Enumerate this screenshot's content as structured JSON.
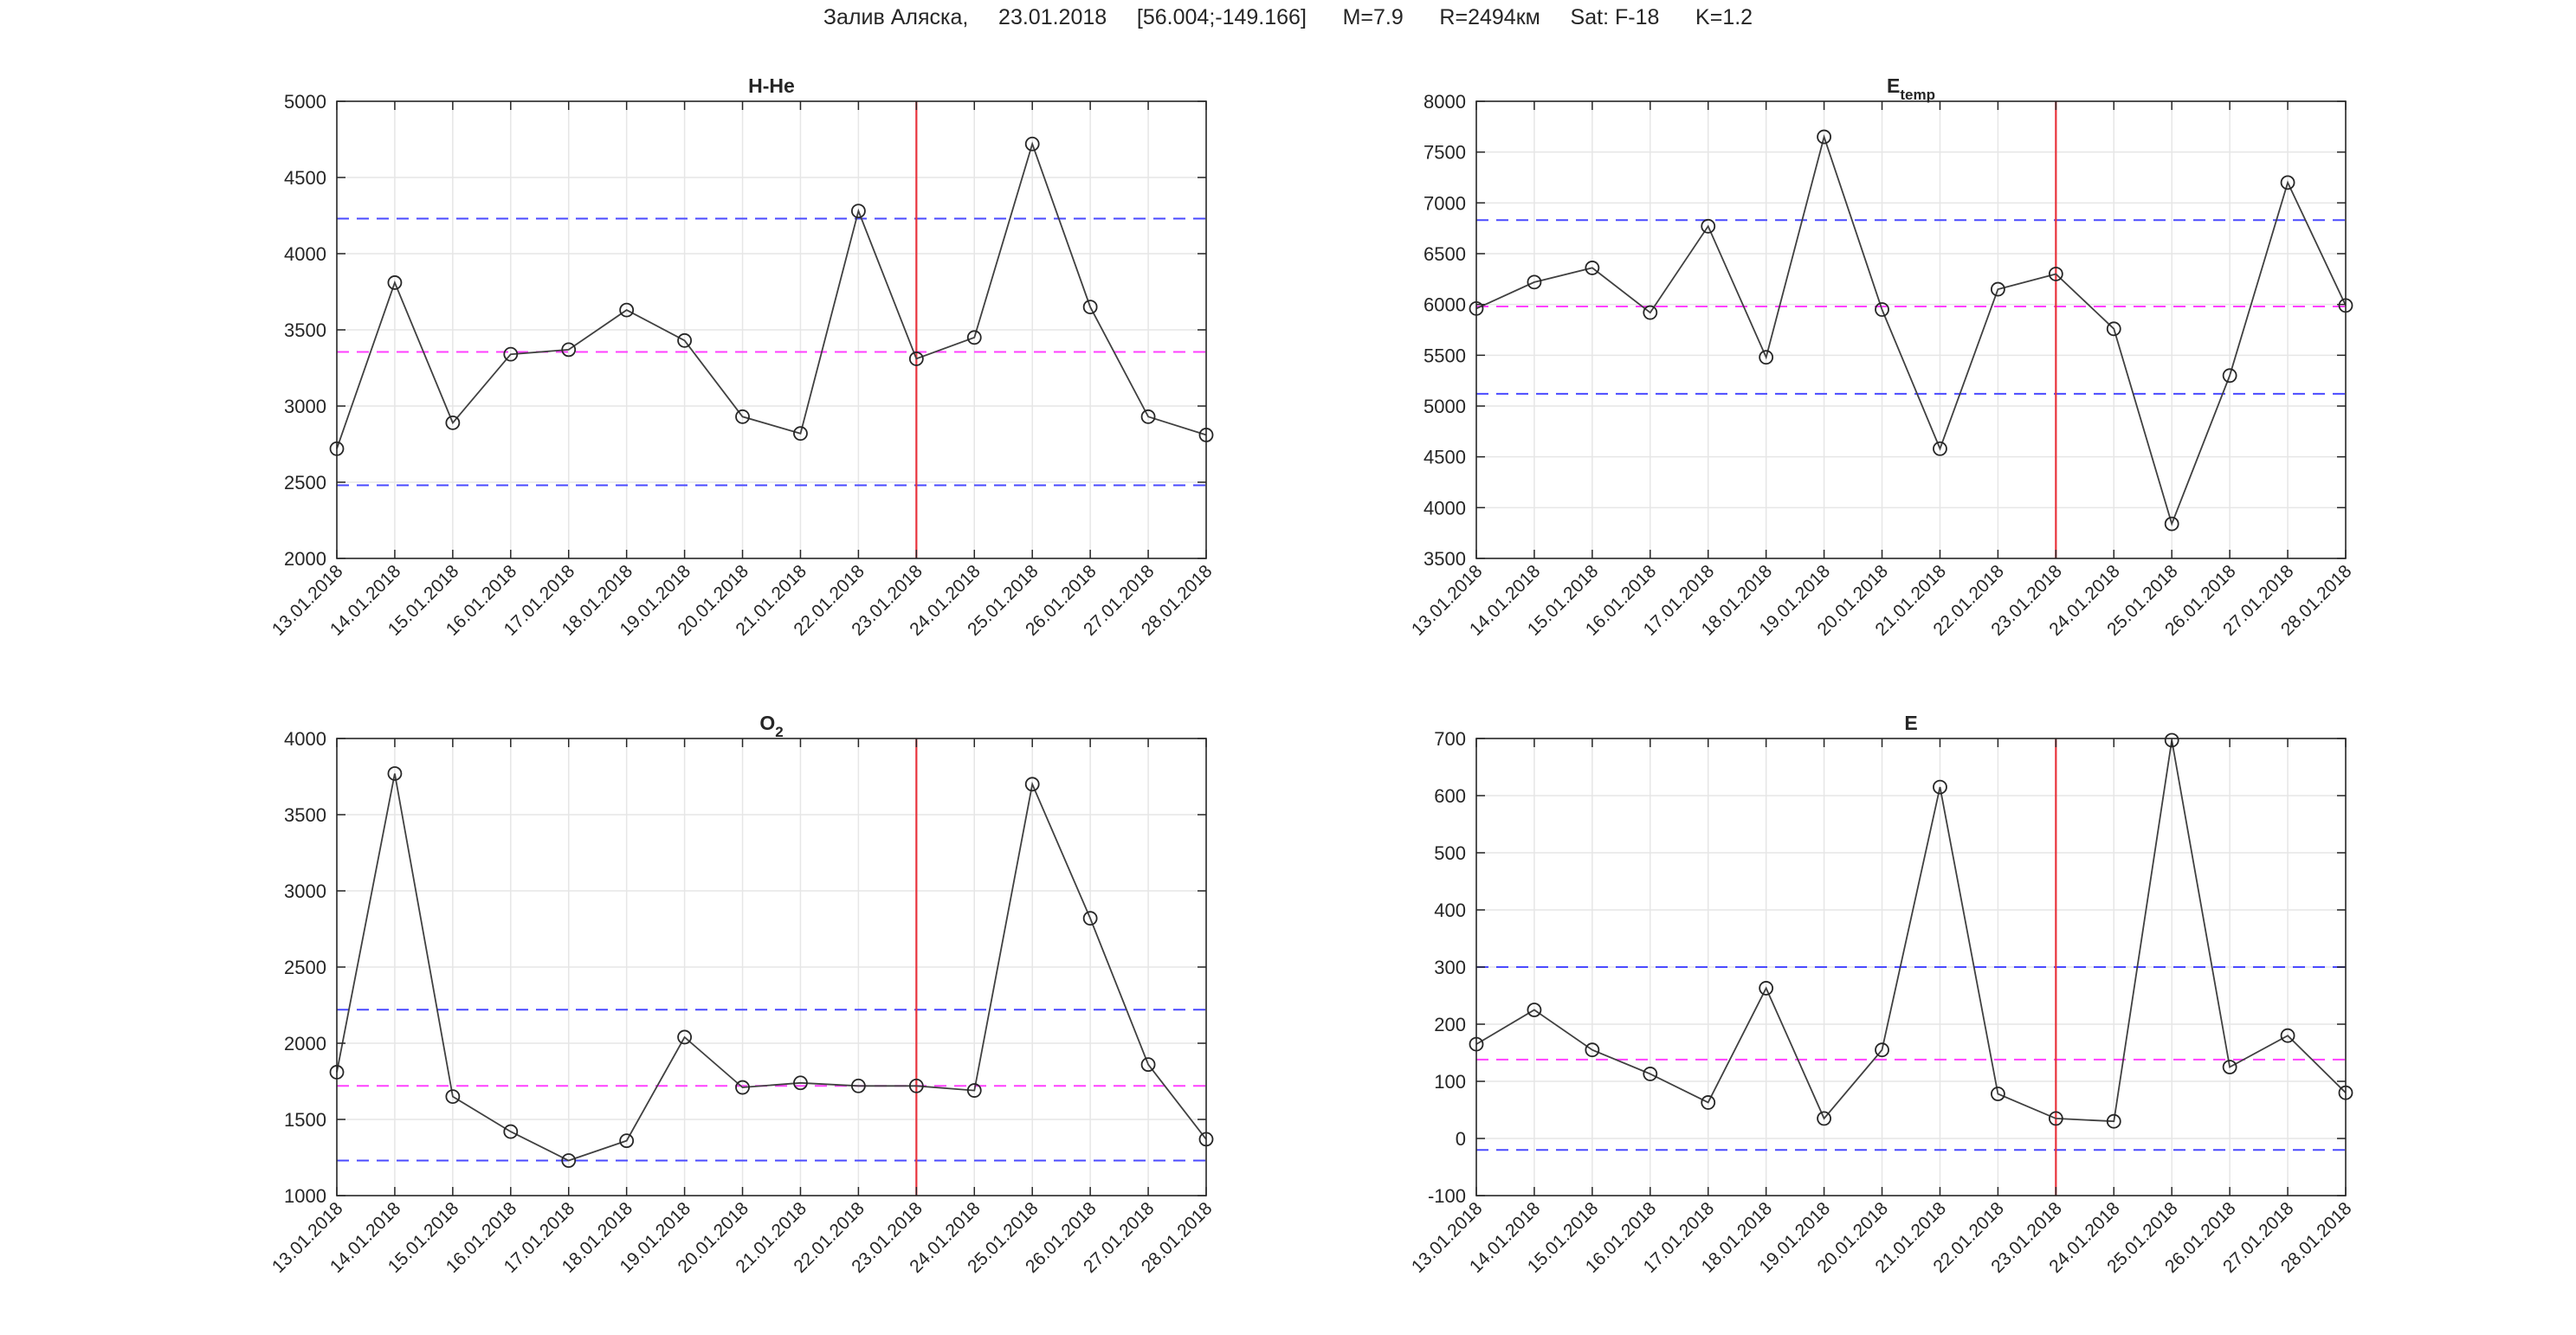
{
  "figure_title": "Залив Аляска,     23.01.2018     [56.004;-149.166]      M=7.9      R=2494км     Sat: F-18      K=1.2",
  "colors": {
    "series": "#404040",
    "mean": "#ff40ff",
    "bound": "#4a4aff",
    "event": "#e8343c",
    "grid": "#e6e6e6"
  },
  "chart_data": [
    {
      "type": "line",
      "title": "H-He",
      "title_sub": "",
      "x": [
        "13.01.2018",
        "14.01.2018",
        "15.01.2018",
        "16.01.2018",
        "17.01.2018",
        "18.01.2018",
        "19.01.2018",
        "20.01.2018",
        "21.01.2018",
        "22.01.2018",
        "23.01.2018",
        "24.01.2018",
        "25.01.2018",
        "26.01.2018",
        "27.01.2018",
        "28.01.2018"
      ],
      "values": [
        2720,
        3810,
        2890,
        3340,
        3370,
        3630,
        3430,
        2930,
        2820,
        4280,
        3310,
        3450,
        4720,
        3650,
        2930,
        2810
      ],
      "ylim": [
        2000,
        5000
      ],
      "yticks": [
        2000,
        2500,
        3000,
        3500,
        4000,
        4500,
        5000
      ],
      "mean": 3355,
      "upper": 4230,
      "lower": 2480,
      "event_x": "23.01.2018",
      "marker": "circle",
      "grid": true
    },
    {
      "type": "line",
      "title": "E",
      "title_sub": "temp",
      "x": [
        "13.01.2018",
        "14.01.2018",
        "15.01.2018",
        "16.01.2018",
        "17.01.2018",
        "18.01.2018",
        "19.01.2018",
        "20.01.2018",
        "21.01.2018",
        "22.01.2018",
        "23.01.2018",
        "24.01.2018",
        "25.01.2018",
        "26.01.2018",
        "27.01.2018",
        "28.01.2018"
      ],
      "values": [
        5960,
        6220,
        6360,
        5920,
        6770,
        5480,
        7650,
        5950,
        4580,
        6150,
        6300,
        5760,
        3840,
        5300,
        7200,
        5990
      ],
      "ylim": [
        3500,
        8000
      ],
      "yticks": [
        3500,
        4000,
        4500,
        5000,
        5500,
        6000,
        6500,
        7000,
        7500,
        8000
      ],
      "mean": 5980,
      "upper": 6830,
      "lower": 5120,
      "event_x": "23.01.2018",
      "marker": "circle",
      "grid": true
    },
    {
      "type": "line",
      "title": "O",
      "title_sub": "2",
      "x": [
        "13.01.2018",
        "14.01.2018",
        "15.01.2018",
        "16.01.2018",
        "17.01.2018",
        "18.01.2018",
        "19.01.2018",
        "20.01.2018",
        "21.01.2018",
        "22.01.2018",
        "23.01.2018",
        "24.01.2018",
        "25.01.2018",
        "26.01.2018",
        "27.01.2018",
        "28.01.2018"
      ],
      "values": [
        1810,
        3770,
        1650,
        1420,
        1230,
        1360,
        2040,
        1710,
        1740,
        1720,
        1720,
        1690,
        3700,
        2820,
        1860,
        1370
      ],
      "ylim": [
        1000,
        4000
      ],
      "yticks": [
        1000,
        1500,
        2000,
        2500,
        3000,
        3500,
        4000
      ],
      "mean": 1720,
      "upper": 2220,
      "lower": 1230,
      "event_x": "23.01.2018",
      "marker": "circle",
      "grid": true
    },
    {
      "type": "line",
      "title": "E",
      "title_sub": "",
      "x": [
        "13.01.2018",
        "14.01.2018",
        "15.01.2018",
        "16.01.2018",
        "17.01.2018",
        "18.01.2018",
        "19.01.2018",
        "20.01.2018",
        "21.01.2018",
        "22.01.2018",
        "23.01.2018",
        "24.01.2018",
        "25.01.2018",
        "26.01.2018",
        "27.01.2018",
        "28.01.2018"
      ],
      "values": [
        165,
        225,
        155,
        113,
        63,
        263,
        35,
        155,
        615,
        78,
        35,
        30,
        697,
        125,
        180,
        80
      ],
      "ylim": [
        -100,
        700
      ],
      "yticks": [
        -100,
        0,
        100,
        200,
        300,
        400,
        500,
        600,
        700
      ],
      "mean": 138,
      "upper": 300,
      "lower": -20,
      "event_x": "23.01.2018",
      "marker": "circle",
      "grid": true
    }
  ]
}
